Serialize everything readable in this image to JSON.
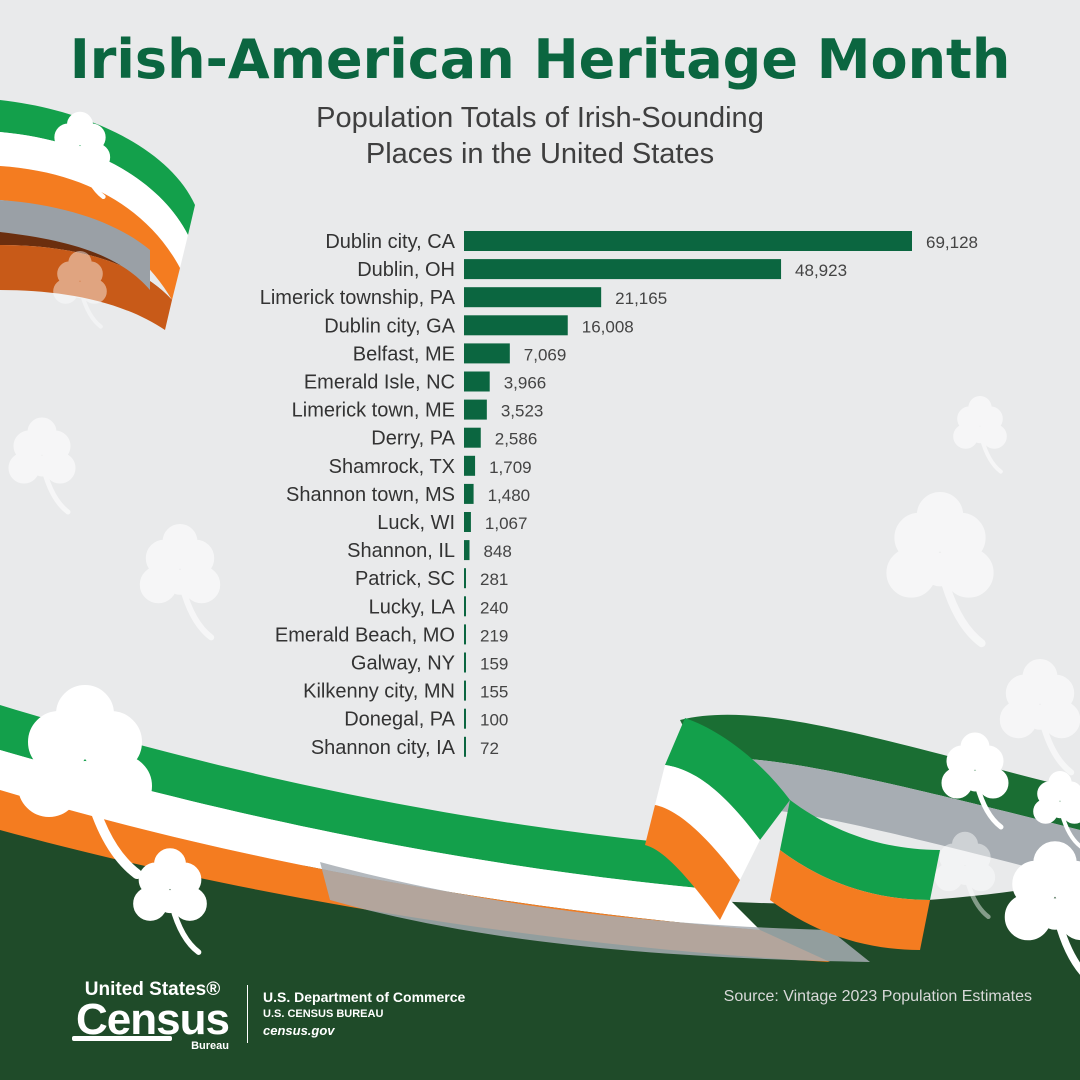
{
  "header": {
    "title": "Irish-American Heritage Month",
    "subtitle_line1": "Population Totals of Irish-Sounding",
    "subtitle_line2": "Places in the United States"
  },
  "chart_data": {
    "type": "bar",
    "orientation": "horizontal",
    "categories": [
      "Dublin city, CA",
      "Dublin, OH",
      "Limerick township, PA",
      "Dublin city, GA",
      "Belfast, ME",
      "Emerald Isle, NC",
      "Limerick town, ME",
      "Derry, PA",
      "Shamrock, TX",
      "Shannon town, MS",
      "Luck, WI",
      "Shannon, IL",
      "Patrick, SC",
      "Lucky, LA",
      "Emerald Beach, MO",
      "Galway, NY",
      "Kilkenny city, MN",
      "Donegal, PA",
      "Shannon city, IA"
    ],
    "values": [
      69128,
      48923,
      21165,
      16008,
      7069,
      3966,
      3523,
      2586,
      1709,
      1480,
      1067,
      848,
      281,
      240,
      219,
      159,
      155,
      100,
      72
    ],
    "value_labels": [
      "69,128",
      "48,923",
      "21,165",
      "16,008",
      "7,069",
      "3,966",
      "3,523",
      "2,586",
      "1,709",
      "1,480",
      "1,067",
      "848",
      "281",
      "240",
      "219",
      "159",
      "155",
      "100",
      "72"
    ],
    "bar_color": "#0b6640",
    "xlim": [
      0,
      69128
    ],
    "grid": false,
    "legend": "none"
  },
  "footer": {
    "logo_top": "United States®",
    "logo_mid": "Census",
    "logo_bot": "Bureau",
    "agency_line1": "U.S. Department of Commerce",
    "agency_line2": "U.S. CENSUS BUREAU",
    "agency_line3": "census.gov",
    "source": "Source: Vintage 2023 Population Estimates"
  },
  "colors": {
    "green": "#0b6640",
    "ribbon_green": "#13a04b",
    "ribbon_orange": "#f47c20",
    "background": "#e9eaeb",
    "ground": "#1f4b29"
  },
  "icons": [
    "shamrock-icon",
    "ribbon-decoration"
  ]
}
